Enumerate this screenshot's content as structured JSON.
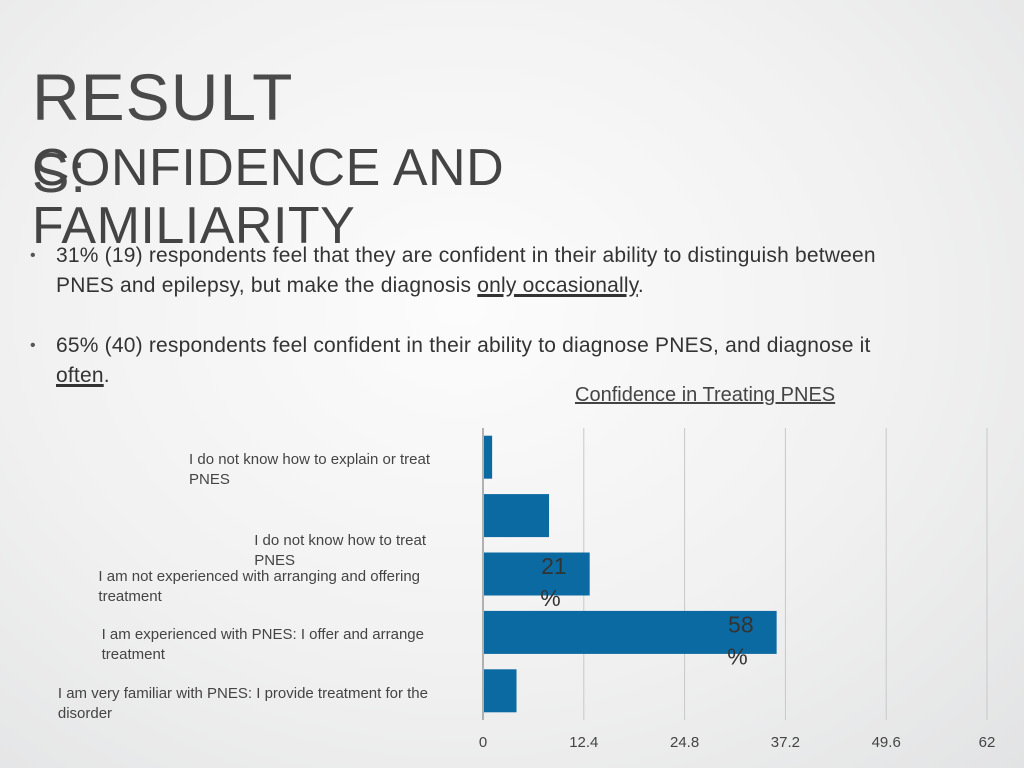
{
  "slide": {
    "title_line1": "RESULT",
    "title_line2": "S:",
    "subtitle_line1": "CONFIDENCE AND",
    "subtitle_line2": "FAMILIARITY"
  },
  "bullets": [
    {
      "dot": "•",
      "text_before": "31% (19) respondents feel that they are confident in their ability to distinguish between PNES and epilepsy, but make the diagnosis ",
      "text_underlined": "only occasionally",
      "text_after": "."
    },
    {
      "dot": "•",
      "text_before": "65% (40) respondents feel confident in their ability to diagnose PNES, and diagnose it ",
      "text_underlined": "often",
      "text_after": "."
    }
  ],
  "chart_data": {
    "type": "bar",
    "orientation": "horizontal",
    "title": "Confidence in Treating PNES",
    "categories": [
      "I do not know how to explain or treat\nPNES",
      "I do not know how to treat\nPNES",
      "I am not experienced with arranging and offering\ntreatment",
      "I am experienced with PNES: I offer and arrange\ntreatment",
      "I am very familiar with PNES: I provide treatment for the\ndisorder"
    ],
    "values": [
      1,
      8,
      13,
      36,
      4
    ],
    "data_labels": [
      "",
      "",
      "21\n%",
      "58\n%",
      ""
    ],
    "x_ticks": [
      "0",
      "12.4",
      "24.8",
      "37.2",
      "49.6",
      "62"
    ],
    "xlim": [
      0,
      62
    ],
    "grid": true,
    "bar_color": "#0b6aa2",
    "grid_color": "#c8c8c8",
    "axis_color": "#9a9a9a"
  }
}
